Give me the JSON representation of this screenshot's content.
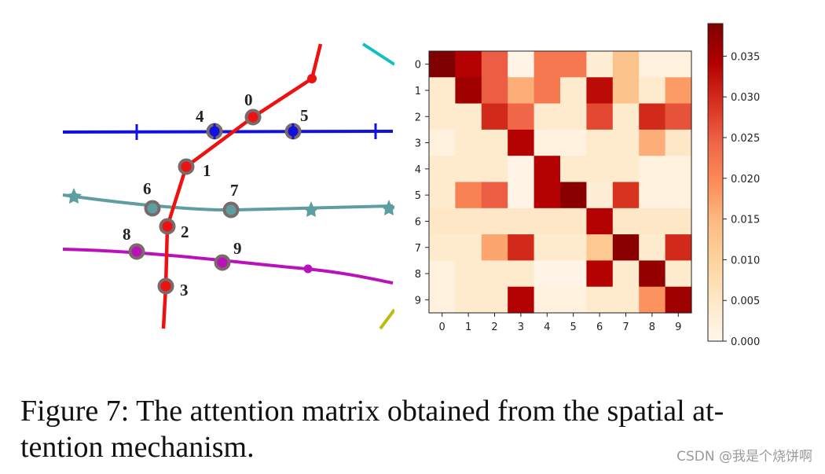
{
  "caption": {
    "line1": "Figure 7: The attention matrix obtained from the spatial at-",
    "line2": "tention mechanism."
  },
  "watermark": "CSDN @我是个烧饼啊",
  "diagram": {
    "nodes": [
      "0",
      "1",
      "2",
      "3",
      "4",
      "5",
      "6",
      "7",
      "8",
      "9"
    ],
    "colors": {
      "red": "#ee1111",
      "blue": "#1111dd",
      "teal": "#5f9ea0",
      "magenta": "#bb11bb",
      "cyan": "#11c0c0",
      "olive": "#bbbb11",
      "node_ring": "#7a6a6a"
    }
  },
  "chart_data": {
    "type": "heatmap",
    "x_ticks": [
      "0",
      "1",
      "2",
      "3",
      "4",
      "5",
      "6",
      "7",
      "8",
      "9"
    ],
    "y_ticks": [
      "0",
      "1",
      "2",
      "3",
      "4",
      "5",
      "6",
      "7",
      "8",
      "9"
    ],
    "colorbar_ticks": [
      "0.000",
      "0.005",
      "0.010",
      "0.015",
      "0.020",
      "0.025",
      "0.030",
      "0.035"
    ],
    "colorbar_range": [
      0,
      0.039
    ],
    "colormap": "OrRd",
    "matrix": [
      [
        0.039,
        0.034,
        0.025,
        0.001,
        0.022,
        0.022,
        0.003,
        0.013,
        0.002,
        0.002
      ],
      [
        0.004,
        0.036,
        0.025,
        0.016,
        0.022,
        0.004,
        0.033,
        0.013,
        0.004,
        0.018
      ],
      [
        0.004,
        0.004,
        0.03,
        0.024,
        0.004,
        0.004,
        0.027,
        0.004,
        0.03,
        0.026
      ],
      [
        0.002,
        0.004,
        0.004,
        0.034,
        0.002,
        0.002,
        0.004,
        0.004,
        0.016,
        0.005
      ],
      [
        0.004,
        0.004,
        0.004,
        0.001,
        0.034,
        0.004,
        0.004,
        0.004,
        0.002,
        0.002
      ],
      [
        0.004,
        0.021,
        0.025,
        0.001,
        0.034,
        0.038,
        0.003,
        0.029,
        0.002,
        0.002
      ],
      [
        0.005,
        0.005,
        0.005,
        0.005,
        0.005,
        0.005,
        0.034,
        0.005,
        0.005,
        0.005
      ],
      [
        0.004,
        0.004,
        0.017,
        0.03,
        0.004,
        0.004,
        0.012,
        0.038,
        0.004,
        0.03
      ],
      [
        0.002,
        0.004,
        0.004,
        0.004,
        0.001,
        0.001,
        0.034,
        0.004,
        0.037,
        0.004
      ],
      [
        0.002,
        0.004,
        0.004,
        0.034,
        0.002,
        0.002,
        0.004,
        0.004,
        0.019,
        0.036
      ]
    ]
  }
}
